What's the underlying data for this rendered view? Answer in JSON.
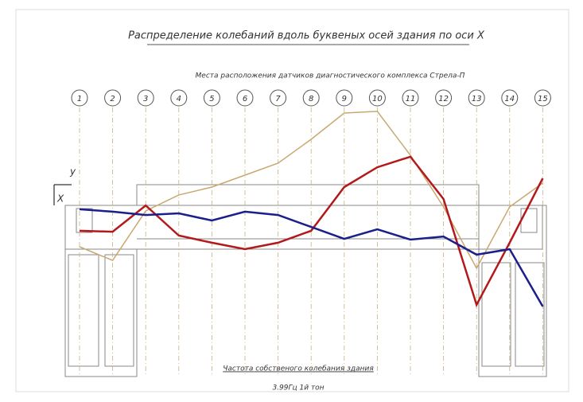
{
  "chart_data": {
    "type": "line",
    "title": "Распределение колебаний вдоль буквеных осей здания по оси X",
    "subtitle": "Места расположения датчиков диагностического комплекса Стрела-П",
    "y_axis_label": "y",
    "x_axis_label": "X",
    "note": "Частота собственого колебания здания",
    "note_value": "3.99Гц   1й тон",
    "categories": [
      "1",
      "2",
      "3",
      "4",
      "5",
      "6",
      "7",
      "8",
      "9",
      "10",
      "11",
      "12",
      "13",
      "14",
      "15"
    ],
    "ylim": [
      0,
      100
    ],
    "series": [
      {
        "color": "#c9a870",
        "values": [
          30,
          24.3,
          45,
          51.7,
          55,
          60,
          65,
          75,
          86,
          86.7,
          68.3,
          46.7,
          21,
          46.7,
          56.7
        ]
      },
      {
        "color": "#b3191b",
        "values": [
          36.7,
          36.3,
          47.3,
          34.7,
          31.7,
          29,
          31.7,
          36.7,
          55,
          63.3,
          67.7,
          50,
          5.7,
          31.7,
          58.7
        ]
      },
      {
        "color": "#1a1f8a",
        "values": [
          45.7,
          44.7,
          43.3,
          44,
          41,
          44.7,
          43.3,
          38.3,
          33.3,
          37.3,
          33,
          34.3,
          26.7,
          29,
          5
        ]
      }
    ]
  }
}
